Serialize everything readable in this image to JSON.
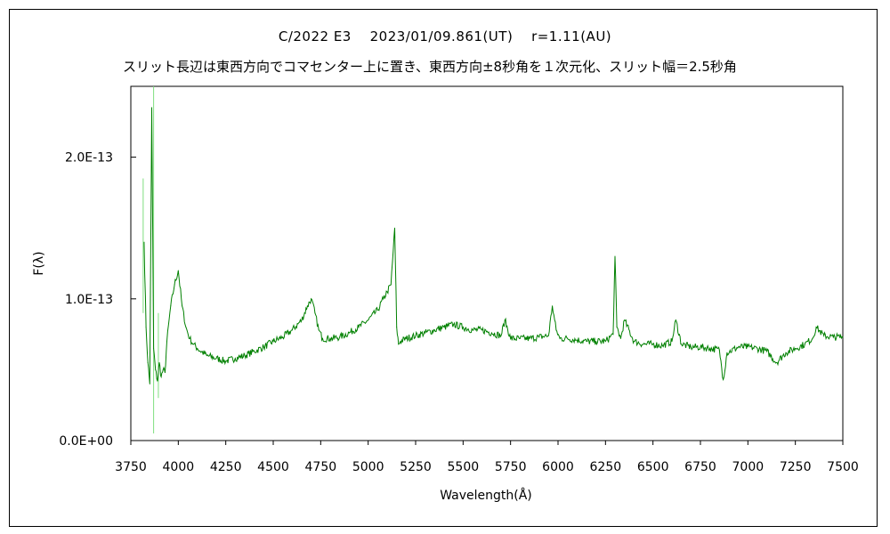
{
  "chart_data": {
    "type": "line",
    "title": "C/2022 E3　 2023/01/09.861(UT)　 r=1.11(AU)",
    "subtitle": "スリット長辺は東西方向でコマセンター上に置き、東西方向±8秒角を１次元化、スリット幅＝2.5秒角",
    "xlabel": "Wavelength(Å)",
    "ylabel": "F(λ)",
    "xlim": [
      3750,
      7500
    ],
    "ylim": [
      0,
      2.5e-13
    ],
    "x_ticks": [
      "3750",
      "4000",
      "4250",
      "4500",
      "4750",
      "5000",
      "5250",
      "5500",
      "5750",
      "6000",
      "6250",
      "6500",
      "6750",
      "7000",
      "7250",
      "7500"
    ],
    "y_ticks": [
      {
        "value": 0,
        "label": "0.0E+00"
      },
      {
        "value": 1e-13,
        "label": "1.0E-13"
      },
      {
        "value": 2e-13,
        "label": "2.0E-13"
      }
    ],
    "grid": false,
    "series": [
      {
        "color": "#008000",
        "error_color": "#7fdf7f",
        "x": [
          3820,
          3830,
          3840,
          3850,
          3860,
          3870,
          3880,
          3890,
          3900,
          3910,
          3920,
          3930,
          3940,
          3960,
          3980,
          4000,
          4020,
          4040,
          4060,
          4080,
          4100,
          4150,
          4200,
          4250,
          4300,
          4350,
          4400,
          4450,
          4500,
          4550,
          4600,
          4650,
          4680,
          4700,
          4720,
          4740,
          4760,
          4800,
          4850,
          4900,
          4950,
          5000,
          5050,
          5080,
          5100,
          5120,
          5140,
          5150,
          5160,
          5170,
          5200,
          5250,
          5300,
          5350,
          5400,
          5450,
          5500,
          5550,
          5600,
          5650,
          5700,
          5720,
          5750,
          5800,
          5850,
          5900,
          5950,
          5970,
          5990,
          6010,
          6050,
          6100,
          6150,
          6200,
          6250,
          6290,
          6300,
          6310,
          6330,
          6350,
          6400,
          6450,
          6500,
          6550,
          6600,
          6620,
          6650,
          6700,
          6750,
          6800,
          6850,
          6870,
          6890,
          6950,
          7000,
          7050,
          7100,
          7150,
          7200,
          7250,
          7300,
          7340,
          7360,
          7400,
          7450,
          7500
        ],
        "y": [
          1.4e-13,
          8e-14,
          5.5e-14,
          4e-14,
          2.35e-13,
          6.5e-14,
          5e-14,
          4.2e-14,
          5.5e-14,
          4.5e-14,
          5e-14,
          4.8e-14,
          7e-14,
          9.5e-14,
          1.1e-13,
          1.2e-13,
          9.5e-14,
          8e-14,
          7.2e-14,
          6.8e-14,
          6.5e-14,
          6e-14,
          5.8e-14,
          5.6e-14,
          5.8e-14,
          6e-14,
          6.3e-14,
          6.6e-14,
          7e-14,
          7.3e-14,
          7.8e-14,
          8.5e-14,
          9.5e-14,
          1e-13,
          9e-14,
          7.8e-14,
          7.2e-14,
          7.2e-14,
          7.3e-14,
          7.6e-14,
          8e-14,
          8.5e-14,
          9.2e-14,
          1e-13,
          1.05e-13,
          1.1e-13,
          1.5e-13,
          8e-14,
          6.8e-14,
          7e-14,
          7.2e-14,
          7.4e-14,
          7.6e-14,
          7.8e-14,
          8e-14,
          8.2e-14,
          8e-14,
          7.8e-14,
          7.8e-14,
          7.6e-14,
          7.4e-14,
          8.5e-14,
          7.2e-14,
          7.2e-14,
          7.2e-14,
          7.3e-14,
          7.4e-14,
          9.5e-14,
          7.8e-14,
          7.2e-14,
          7.2e-14,
          7.1e-14,
          7e-14,
          7e-14,
          7e-14,
          7.5e-14,
          1.3e-13,
          8e-14,
          7.2e-14,
          8.5e-14,
          7e-14,
          6.8e-14,
          6.8e-14,
          6.7e-14,
          7e-14,
          8.5e-14,
          6.8e-14,
          6.6e-14,
          6.6e-14,
          6.5e-14,
          6.4e-14,
          4.3e-14,
          6.2e-14,
          6.6e-14,
          6.6e-14,
          6.5e-14,
          6.3e-14,
          5.5e-14,
          6.2e-14,
          6.5e-14,
          6.8e-14,
          7.2e-14,
          8e-14,
          7.4e-14,
          7.3e-14,
          7.3e-14
        ]
      }
    ]
  }
}
